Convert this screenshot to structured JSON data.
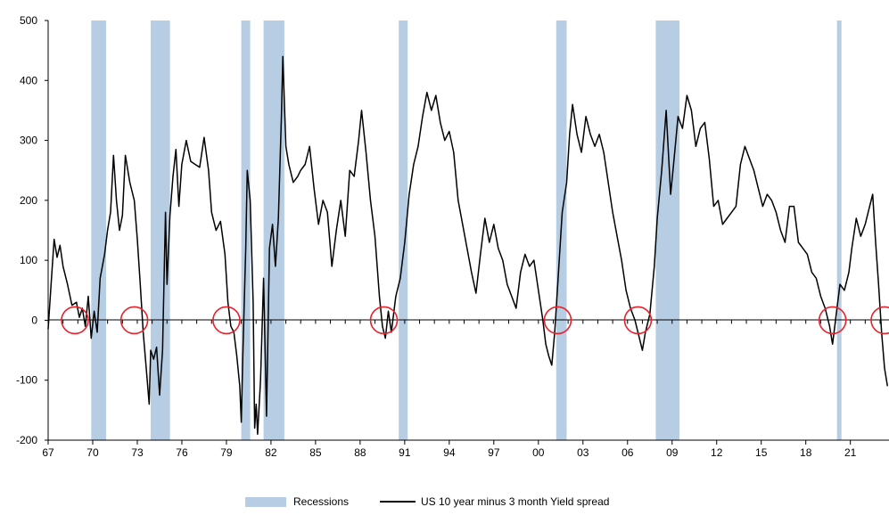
{
  "chart_data": {
    "type": "line",
    "title": "",
    "xlabel": "",
    "ylabel": "",
    "xlim": [
      1967,
      2023.6
    ],
    "ylim": [
      -200,
      500
    ],
    "y_ticks": [
      500,
      400,
      300,
      200,
      100,
      0,
      -100,
      -200
    ],
    "x_ticks": [
      {
        "value": 1967,
        "label": "67"
      },
      {
        "value": 1970,
        "label": "70"
      },
      {
        "value": 1973,
        "label": "73"
      },
      {
        "value": 1976,
        "label": "76"
      },
      {
        "value": 1979,
        "label": "79"
      },
      {
        "value": 1982,
        "label": "82"
      },
      {
        "value": 1985,
        "label": "85"
      },
      {
        "value": 1988,
        "label": "88"
      },
      {
        "value": 1991,
        "label": "91"
      },
      {
        "value": 1994,
        "label": "94"
      },
      {
        "value": 1997,
        "label": "97"
      },
      {
        "value": 2000,
        "label": "00"
      },
      {
        "value": 2003,
        "label": "03"
      },
      {
        "value": 2006,
        "label": "06"
      },
      {
        "value": 2009,
        "label": "09"
      },
      {
        "value": 2012,
        "label": "12"
      },
      {
        "value": 2015,
        "label": "15"
      },
      {
        "value": 2018,
        "label": "18"
      },
      {
        "value": 2021,
        "label": "21"
      }
    ],
    "recessions": [
      [
        1969.9,
        1970.9
      ],
      [
        1973.9,
        1975.2
      ],
      [
        1980.0,
        1980.6
      ],
      [
        1981.5,
        1982.9
      ],
      [
        1990.6,
        1991.2
      ],
      [
        2001.2,
        2001.9
      ],
      [
        2007.9,
        2009.5
      ],
      [
        2020.1,
        2020.4
      ]
    ],
    "inversion_markers": [
      1968.8,
      1972.8,
      1979.0,
      1989.6,
      2001.3,
      2006.7,
      2019.8,
      2023.3
    ],
    "series": [
      {
        "name": "US 10 year minus 3 month Yield spread",
        "color": "#000000",
        "points": [
          [
            1967.0,
            -15
          ],
          [
            1967.2,
            60
          ],
          [
            1967.4,
            135
          ],
          [
            1967.6,
            105
          ],
          [
            1967.8,
            125
          ],
          [
            1968.0,
            90
          ],
          [
            1968.3,
            60
          ],
          [
            1968.6,
            25
          ],
          [
            1968.9,
            30
          ],
          [
            1969.1,
            5
          ],
          [
            1969.3,
            20
          ],
          [
            1969.5,
            -10
          ],
          [
            1969.7,
            40
          ],
          [
            1969.9,
            -30
          ],
          [
            1970.1,
            15
          ],
          [
            1970.3,
            -20
          ],
          [
            1970.5,
            70
          ],
          [
            1970.8,
            110
          ],
          [
            1971.0,
            150
          ],
          [
            1971.2,
            180
          ],
          [
            1971.4,
            275
          ],
          [
            1971.6,
            200
          ],
          [
            1971.8,
            150
          ],
          [
            1972.0,
            175
          ],
          [
            1972.2,
            275
          ],
          [
            1972.5,
            230
          ],
          [
            1972.8,
            200
          ],
          [
            1973.0,
            135
          ],
          [
            1973.2,
            60
          ],
          [
            1973.4,
            -20
          ],
          [
            1973.6,
            -80
          ],
          [
            1973.8,
            -140
          ],
          [
            1973.9,
            -50
          ],
          [
            1974.1,
            -65
          ],
          [
            1974.3,
            -45
          ],
          [
            1974.5,
            -125
          ],
          [
            1974.7,
            -50
          ],
          [
            1974.9,
            180
          ],
          [
            1975.0,
            60
          ],
          [
            1975.2,
            175
          ],
          [
            1975.4,
            240
          ],
          [
            1975.6,
            285
          ],
          [
            1975.8,
            190
          ],
          [
            1976.0,
            260
          ],
          [
            1976.3,
            300
          ],
          [
            1976.6,
            265
          ],
          [
            1976.9,
            260
          ],
          [
            1977.2,
            255
          ],
          [
            1977.5,
            305
          ],
          [
            1977.8,
            250
          ],
          [
            1978.0,
            180
          ],
          [
            1978.3,
            150
          ],
          [
            1978.6,
            165
          ],
          [
            1978.9,
            110
          ],
          [
            1979.1,
            30
          ],
          [
            1979.3,
            -10
          ],
          [
            1979.5,
            -20
          ],
          [
            1979.7,
            -60
          ],
          [
            1979.9,
            -110
          ],
          [
            1980.0,
            -170
          ],
          [
            1980.1,
            -60
          ],
          [
            1980.3,
            120
          ],
          [
            1980.4,
            250
          ],
          [
            1980.6,
            200
          ],
          [
            1980.8,
            30
          ],
          [
            1980.9,
            -180
          ],
          [
            1981.0,
            -140
          ],
          [
            1981.1,
            -190
          ],
          [
            1981.3,
            -100
          ],
          [
            1981.5,
            70
          ],
          [
            1981.7,
            -160
          ],
          [
            1981.9,
            120
          ],
          [
            1982.1,
            160
          ],
          [
            1982.3,
            90
          ],
          [
            1982.5,
            170
          ],
          [
            1982.7,
            340
          ],
          [
            1982.8,
            440
          ],
          [
            1983.0,
            290
          ],
          [
            1983.2,
            260
          ],
          [
            1983.5,
            230
          ],
          [
            1983.8,
            240
          ],
          [
            1984.0,
            250
          ],
          [
            1984.3,
            260
          ],
          [
            1984.6,
            290
          ],
          [
            1984.9,
            220
          ],
          [
            1985.2,
            160
          ],
          [
            1985.5,
            200
          ],
          [
            1985.8,
            180
          ],
          [
            1986.1,
            90
          ],
          [
            1986.4,
            150
          ],
          [
            1986.7,
            200
          ],
          [
            1987.0,
            140
          ],
          [
            1987.3,
            250
          ],
          [
            1987.6,
            240
          ],
          [
            1987.9,
            300
          ],
          [
            1988.1,
            350
          ],
          [
            1988.4,
            280
          ],
          [
            1988.7,
            200
          ],
          [
            1989.0,
            140
          ],
          [
            1989.3,
            40
          ],
          [
            1989.5,
            -10
          ],
          [
            1989.7,
            -30
          ],
          [
            1989.9,
            15
          ],
          [
            1990.1,
            -20
          ],
          [
            1990.4,
            40
          ],
          [
            1990.7,
            70
          ],
          [
            1991.0,
            130
          ],
          [
            1991.3,
            210
          ],
          [
            1991.6,
            260
          ],
          [
            1991.9,
            290
          ],
          [
            1992.2,
            340
          ],
          [
            1992.5,
            380
          ],
          [
            1992.8,
            350
          ],
          [
            1993.1,
            375
          ],
          [
            1993.4,
            330
          ],
          [
            1993.7,
            300
          ],
          [
            1994.0,
            315
          ],
          [
            1994.3,
            280
          ],
          [
            1994.6,
            200
          ],
          [
            1994.9,
            160
          ],
          [
            1995.2,
            120
          ],
          [
            1995.5,
            80
          ],
          [
            1995.8,
            45
          ],
          [
            1996.1,
            110
          ],
          [
            1996.4,
            170
          ],
          [
            1996.7,
            130
          ],
          [
            1997.0,
            160
          ],
          [
            1997.3,
            120
          ],
          [
            1997.6,
            100
          ],
          [
            1997.9,
            60
          ],
          [
            1998.2,
            40
          ],
          [
            1998.5,
            20
          ],
          [
            1998.8,
            80
          ],
          [
            1999.1,
            110
          ],
          [
            1999.4,
            90
          ],
          [
            1999.7,
            100
          ],
          [
            2000.0,
            50
          ],
          [
            2000.3,
            0
          ],
          [
            2000.5,
            -40
          ],
          [
            2000.7,
            -60
          ],
          [
            2000.9,
            -75
          ],
          [
            2001.1,
            -20
          ],
          [
            2001.3,
            60
          ],
          [
            2001.6,
            180
          ],
          [
            2001.9,
            230
          ],
          [
            2002.1,
            310
          ],
          [
            2002.3,
            360
          ],
          [
            2002.6,
            310
          ],
          [
            2002.9,
            280
          ],
          [
            2003.2,
            340
          ],
          [
            2003.5,
            310
          ],
          [
            2003.8,
            290
          ],
          [
            2004.1,
            310
          ],
          [
            2004.4,
            280
          ],
          [
            2004.7,
            230
          ],
          [
            2005.0,
            180
          ],
          [
            2005.3,
            140
          ],
          [
            2005.6,
            100
          ],
          [
            2005.9,
            50
          ],
          [
            2006.2,
            20
          ],
          [
            2006.5,
            0
          ],
          [
            2006.8,
            -30
          ],
          [
            2007.0,
            -50
          ],
          [
            2007.2,
            -20
          ],
          [
            2007.5,
            10
          ],
          [
            2007.8,
            90
          ],
          [
            2008.0,
            170
          ],
          [
            2008.3,
            250
          ],
          [
            2008.6,
            350
          ],
          [
            2008.9,
            210
          ],
          [
            2009.1,
            260
          ],
          [
            2009.4,
            340
          ],
          [
            2009.7,
            320
          ],
          [
            2010.0,
            375
          ],
          [
            2010.3,
            350
          ],
          [
            2010.6,
            290
          ],
          [
            2010.9,
            320
          ],
          [
            2011.2,
            330
          ],
          [
            2011.5,
            270
          ],
          [
            2011.8,
            190
          ],
          [
            2012.1,
            200
          ],
          [
            2012.4,
            160
          ],
          [
            2012.7,
            170
          ],
          [
            2013.0,
            180
          ],
          [
            2013.3,
            190
          ],
          [
            2013.6,
            260
          ],
          [
            2013.9,
            290
          ],
          [
            2014.2,
            270
          ],
          [
            2014.5,
            250
          ],
          [
            2014.8,
            220
          ],
          [
            2015.1,
            190
          ],
          [
            2015.4,
            210
          ],
          [
            2015.7,
            200
          ],
          [
            2016.0,
            180
          ],
          [
            2016.3,
            150
          ],
          [
            2016.6,
            130
          ],
          [
            2016.9,
            190
          ],
          [
            2017.2,
            190
          ],
          [
            2017.5,
            130
          ],
          [
            2017.8,
            120
          ],
          [
            2018.1,
            110
          ],
          [
            2018.4,
            80
          ],
          [
            2018.7,
            70
          ],
          [
            2019.0,
            40
          ],
          [
            2019.3,
            20
          ],
          [
            2019.6,
            -10
          ],
          [
            2019.8,
            -40
          ],
          [
            2020.0,
            0
          ],
          [
            2020.3,
            60
          ],
          [
            2020.6,
            50
          ],
          [
            2020.9,
            80
          ],
          [
            2021.1,
            120
          ],
          [
            2021.4,
            170
          ],
          [
            2021.7,
            140
          ],
          [
            2022.0,
            160
          ],
          [
            2022.3,
            190
          ],
          [
            2022.5,
            210
          ],
          [
            2022.7,
            130
          ],
          [
            2022.9,
            60
          ],
          [
            2023.1,
            -20
          ],
          [
            2023.3,
            -80
          ],
          [
            2023.5,
            -110
          ]
        ]
      }
    ]
  },
  "legend": {
    "recessions_label": "Recessions",
    "series_label": "US 10 year minus 3 month Yield spread"
  },
  "colors": {
    "recession_fill": "#b6cde3",
    "inversion_circle": "#e8212b",
    "line": "#000000"
  }
}
